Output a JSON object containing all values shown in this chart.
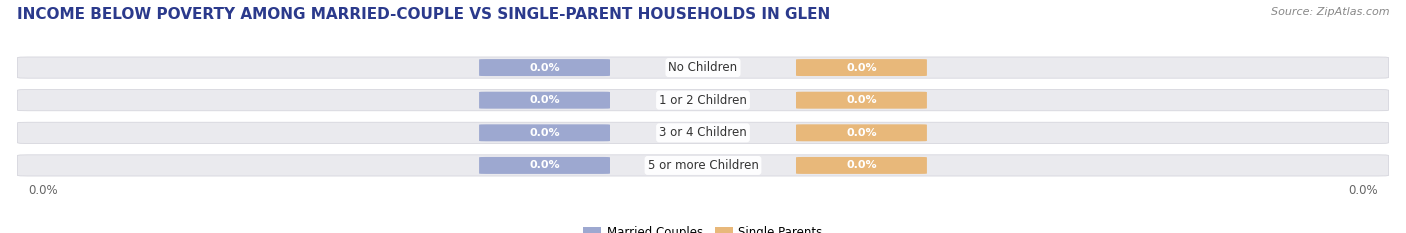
{
  "title": "INCOME BELOW POVERTY AMONG MARRIED-COUPLE VS SINGLE-PARENT HOUSEHOLDS IN GLEN",
  "source": "Source: ZipAtlas.com",
  "categories": [
    "No Children",
    "1 or 2 Children",
    "3 or 4 Children",
    "5 or more Children"
  ],
  "married_values": [
    0.0,
    0.0,
    0.0,
    0.0
  ],
  "single_values": [
    0.0,
    0.0,
    0.0,
    0.0
  ],
  "married_color": "#9da8d0",
  "single_color": "#e8b87a",
  "bar_bg_color": "#eaeaee",
  "title_color": "#2b3a8c",
  "source_color": "#888888",
  "axis_label_color": "#666666",
  "category_color": "#333333",
  "title_fontsize": 11,
  "source_fontsize": 8,
  "label_fontsize": 8,
  "category_fontsize": 8.5,
  "axis_label_fontsize": 8.5,
  "xlim_left": "0.0%",
  "xlim_right": "0.0%",
  "figsize": [
    14.06,
    2.33
  ],
  "dpi": 100
}
